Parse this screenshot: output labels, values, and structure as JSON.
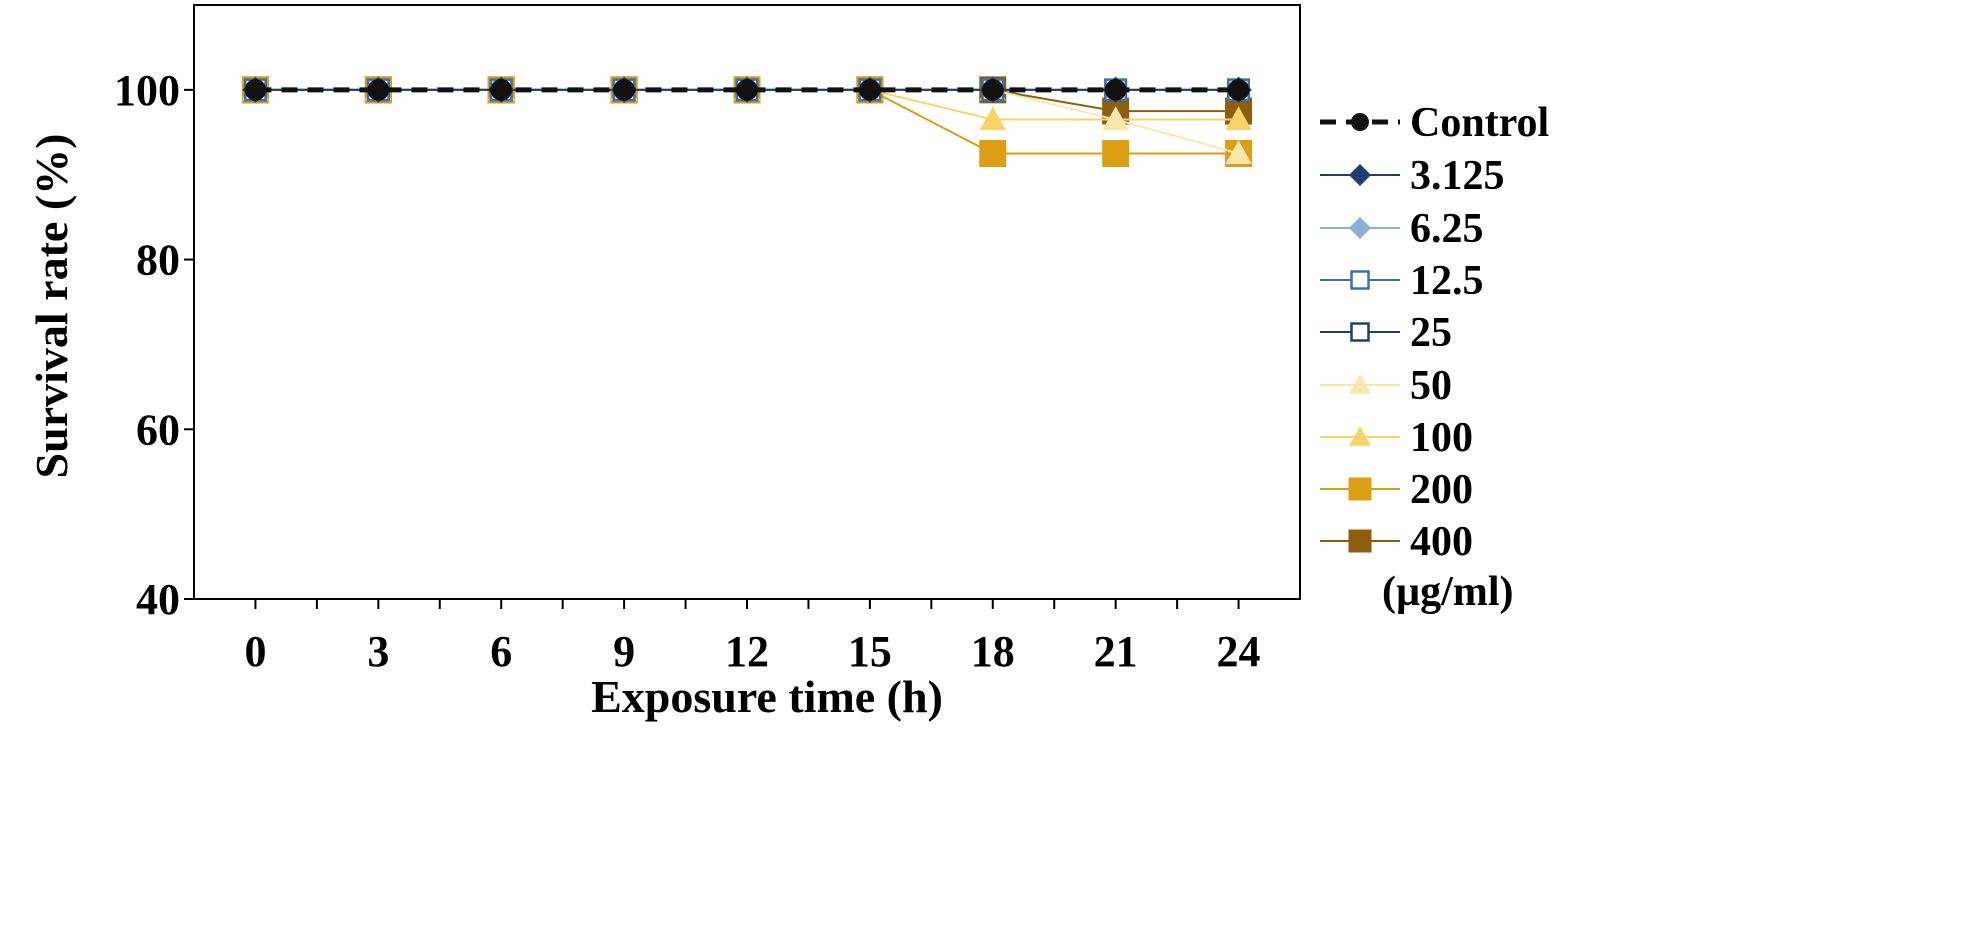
{
  "chart_data": {
    "type": "line",
    "xlabel": "Exposure time (h)",
    "ylabel": "Survival rate (%)",
    "x": [
      0,
      3,
      6,
      9,
      12,
      15,
      18,
      21,
      24
    ],
    "xlim": [
      -1.5,
      25.5
    ],
    "ylim": [
      40,
      110
    ],
    "yticks": [
      40,
      60,
      80,
      100
    ],
    "grid": false,
    "legend_position": "right",
    "legend_unit": "(µg/ml)",
    "series": [
      {
        "name": "Control",
        "color": "#111111",
        "marker": "circle",
        "dash": true,
        "values": [
          100,
          100,
          100,
          100,
          100,
          100,
          100,
          100,
          100
        ]
      },
      {
        "name": "3.125",
        "color": "#1f3f6e",
        "marker": "diamond",
        "values": [
          100,
          100,
          100,
          100,
          100,
          100,
          100,
          100,
          100
        ]
      },
      {
        "name": "6.25",
        "color": "#8eaed6",
        "marker": "diamond",
        "values": [
          100,
          100,
          100,
          100,
          100,
          100,
          100,
          100,
          100
        ]
      },
      {
        "name": "12.5",
        "color": "#3f6fb0",
        "marker": "square-open",
        "values": [
          100,
          100,
          100,
          100,
          100,
          100,
          100,
          100,
          100
        ]
      },
      {
        "name": "25",
        "color": "#1f3f6e",
        "marker": "square-open",
        "values": [
          100,
          100,
          100,
          100,
          100,
          100,
          100,
          100,
          100
        ]
      },
      {
        "name": "50",
        "color": "#fbe6ad",
        "marker": "triangle",
        "values": [
          100,
          100,
          100,
          100,
          100,
          100,
          100,
          96.5,
          92.5
        ]
      },
      {
        "name": "100",
        "color": "#f9d36a",
        "marker": "triangle",
        "values": [
          100,
          100,
          100,
          100,
          100,
          100,
          96.5,
          96.5,
          96.5
        ]
      },
      {
        "name": "200",
        "color": "#dc9e14",
        "marker": "square",
        "values": [
          100,
          100,
          100,
          100,
          100,
          100,
          92.5,
          92.5,
          92.5
        ]
      },
      {
        "name": "400",
        "color": "#8c5e0e",
        "marker": "square",
        "values": [
          100,
          100,
          100,
          100,
          100,
          100,
          100,
          97.5,
          97.5
        ]
      }
    ]
  }
}
